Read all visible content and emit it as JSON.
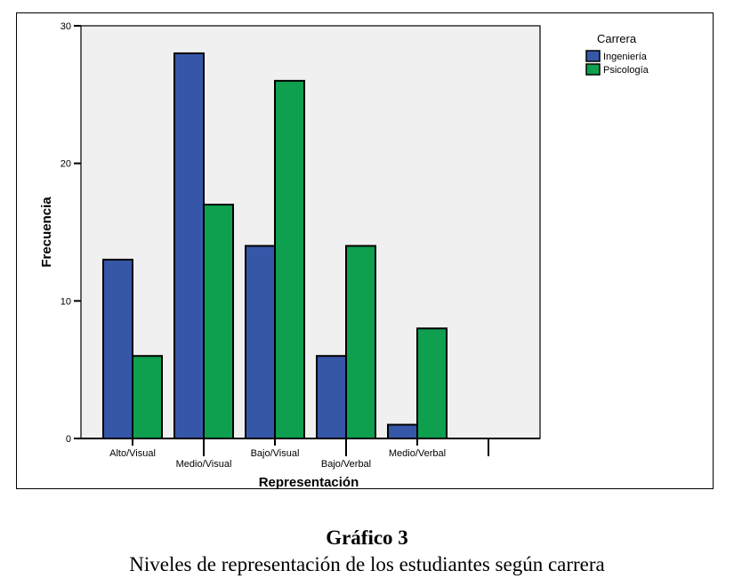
{
  "chart_data": {
    "type": "bar",
    "categories": [
      "Alto/Visual",
      "Medio/Visual",
      "Bajo/Visual",
      "Bajo/Verbal",
      "Medio/Verbal"
    ],
    "series": [
      {
        "name": "Ingeniería",
        "values": [
          13,
          28,
          14,
          6,
          1
        ],
        "color": "#3656A8"
      },
      {
        "name": "Psicología",
        "values": [
          6,
          17,
          26,
          14,
          8
        ],
        "color": "#0E9F4F"
      }
    ],
    "xlabel": "Representación",
    "ylabel": "Frecuencia",
    "ylim": [
      0,
      30
    ],
    "yticks": [
      0,
      10,
      20,
      30
    ],
    "legend_title": "Carrera",
    "legend_position": "top-right outside",
    "plot_background": "#f0f0f0",
    "grid": false
  },
  "caption": {
    "title": "Gráfico 3",
    "subtitle": "Niveles de representación de los estudiantes según carrera"
  }
}
